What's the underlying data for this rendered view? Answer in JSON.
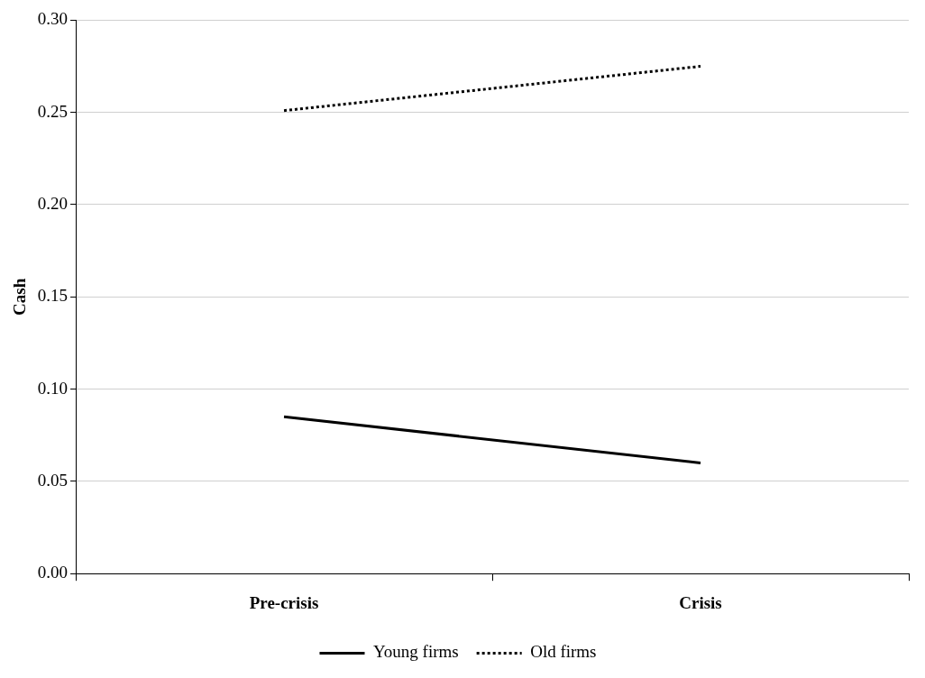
{
  "chart_data": {
    "type": "line",
    "ylabel": "Cash",
    "categories": [
      "Pre-crisis",
      "Crisis"
    ],
    "series": [
      {
        "name": "Young firms",
        "color": "#000000",
        "values": [
          0.085,
          0.06
        ],
        "line_style": "solid"
      },
      {
        "name": "Old firms",
        "color": "#000000",
        "values": [
          0.251,
          0.275
        ],
        "line_style": "dotted"
      }
    ],
    "ylim": [
      0,
      0.3
    ],
    "yticks": [
      {
        "value": 0,
        "label": "0.00"
      },
      {
        "value": 0.05,
        "label": "0.05"
      },
      {
        "value": 0.1,
        "label": "0.10"
      },
      {
        "value": 0.15,
        "label": "0.15"
      },
      {
        "value": 0.2,
        "label": "0.20"
      },
      {
        "value": 0.25,
        "label": "0.25"
      },
      {
        "value": 0.3,
        "label": "0.30"
      }
    ],
    "grid": "y",
    "legend": "bottom",
    "marker": "none"
  }
}
